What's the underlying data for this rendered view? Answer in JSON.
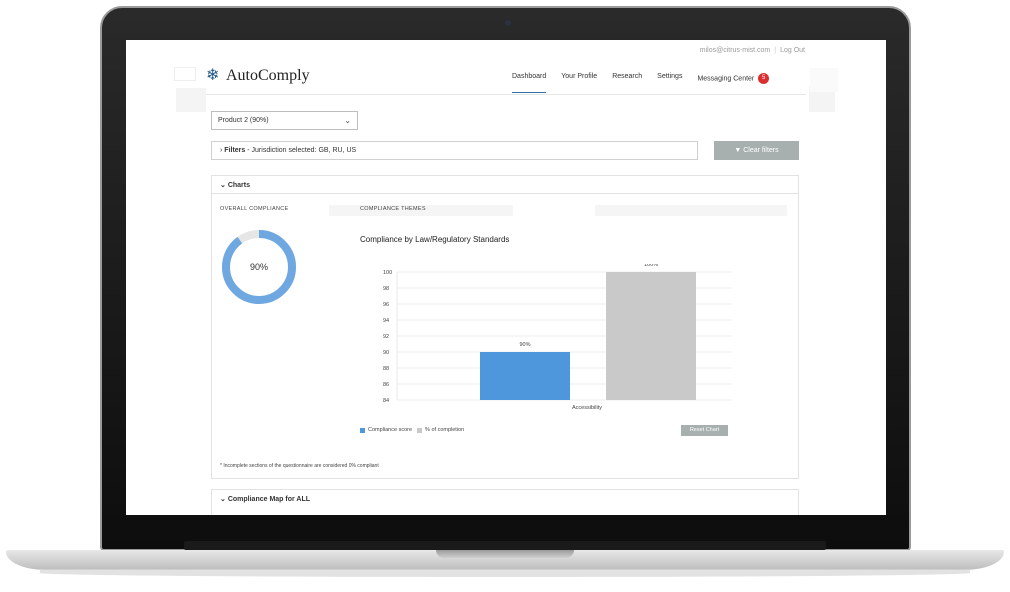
{
  "header": {
    "user_email": "milos@citrus-mist.com",
    "separator": "|",
    "logout_label": "Log Out",
    "logo_text": "AutoComply",
    "nav": [
      {
        "label": "Dashboard",
        "active": true
      },
      {
        "label": "Your Profile"
      },
      {
        "label": "Research"
      },
      {
        "label": "Settings"
      },
      {
        "label": "Messaging Center"
      }
    ],
    "messages_badge": "5"
  },
  "product_select": {
    "value": "Product 2 (90%)"
  },
  "filters": {
    "label": "Filters",
    "summary": " - Jurisdiction selected: GB, RU, US",
    "clear_label": "Clear filters"
  },
  "charts_panel": {
    "title": "Charts",
    "overall_label": "OVERALL COMPLIANCE",
    "overall_value": "90%",
    "overall_fraction": 0.9,
    "themes_label": "COMPLIANCE THEMES",
    "footnote": "* Incomplete sections of the questionnaire are considered 0% compliant",
    "reset_label": "Reset Chart"
  },
  "map_panel": {
    "title": "Compliance Map for ALL"
  },
  "colors": {
    "accent": "#4f97dc",
    "gray_bar": "#c9c9c9",
    "badge": "#d8302f",
    "button": "#a7b0ae"
  },
  "chart_data": {
    "type": "bar",
    "title": "Compliance by Law/Regulatory Standards",
    "categories": [
      "Accessibility"
    ],
    "series": [
      {
        "name": "Compliance score",
        "values": [
          90
        ],
        "color": "#4f97dc",
        "label": "90%"
      },
      {
        "name": "% of completion",
        "values": [
          100
        ],
        "color": "#c9c9c9",
        "label": "100%"
      }
    ],
    "ylim": [
      84,
      100
    ],
    "yticks": [
      "84",
      "86",
      "88",
      "90",
      "92",
      "94",
      "96",
      "98",
      "100"
    ],
    "grid": true,
    "legend": "bottom-left"
  }
}
